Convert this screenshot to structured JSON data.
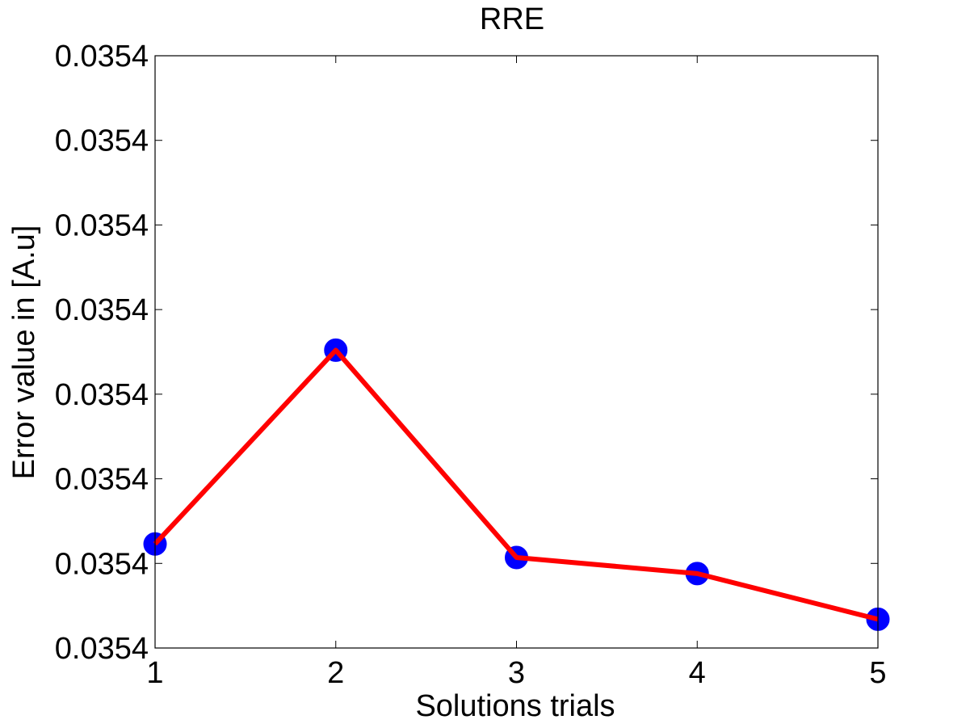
{
  "chart_data": {
    "type": "line",
    "title": "RRE",
    "xlabel": "Solutions trials",
    "ylabel": "Error value in [A.u]",
    "x": [
      1,
      2,
      3,
      4,
      5
    ],
    "x_ticks": [
      "1",
      "2",
      "3",
      "4",
      "5"
    ],
    "y_ticks": [
      "0.0354",
      "0.0354",
      "0.0354",
      "0.0354",
      "0.0354",
      "0.0354",
      "0.0354",
      "0.0354"
    ],
    "y_tick_positions": [
      0,
      1,
      2,
      3,
      4,
      5,
      6,
      7
    ],
    "ylim": [
      0,
      7
    ],
    "xlim": [
      1,
      5
    ],
    "series": [
      {
        "values": [
          1.23,
          3.52,
          1.07,
          0.88,
          0.34
        ]
      }
    ],
    "grid": false,
    "colors": {
      "line": "#ff0000",
      "marker": "#0000ff"
    }
  }
}
